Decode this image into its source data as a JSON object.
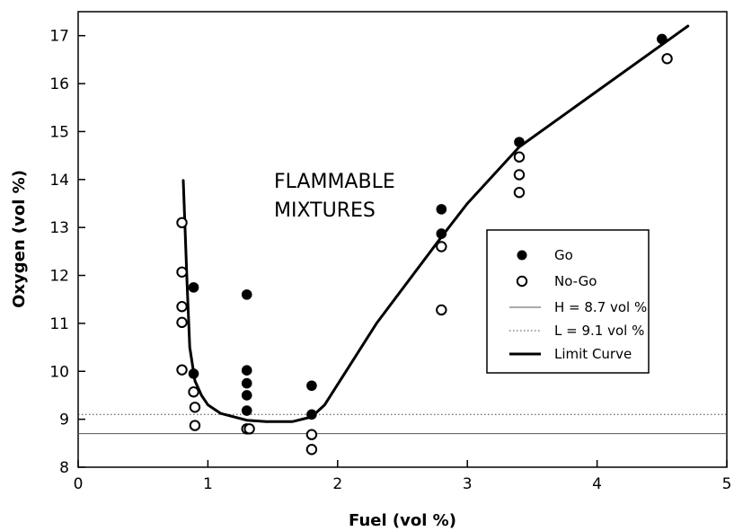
{
  "chart_data": {
    "type": "scatter",
    "xlabel": "Fuel (vol %)",
    "ylabel": "Oxygen (vol %)",
    "xlim": [
      0,
      5
    ],
    "ylim": [
      8,
      17.5
    ],
    "xticks": [
      "0",
      "1",
      "2",
      "3",
      "4",
      "5"
    ],
    "yticks": [
      "8",
      "9",
      "10",
      "11",
      "12",
      "13",
      "14",
      "15",
      "16",
      "17"
    ],
    "annotation": [
      "FLAMMABLE",
      "MIXTURES"
    ],
    "legend_position": "right",
    "series": [
      {
        "name": "Go",
        "marker": "filled-circle",
        "x": [
          0.89,
          0.89,
          1.3,
          1.3,
          1.3,
          1.3,
          1.3,
          1.31,
          1.8,
          1.8,
          2.8,
          2.8,
          3.4,
          4.5
        ],
        "y": [
          11.75,
          9.95,
          11.6,
          10.02,
          9.75,
          9.5,
          9.18,
          8.8,
          9.7,
          9.1,
          13.38,
          12.87,
          14.78,
          16.93
        ]
      },
      {
        "name": "No-Go",
        "marker": "open-circle",
        "x": [
          0.8,
          0.8,
          0.8,
          0.8,
          0.8,
          0.89,
          0.9,
          0.9,
          1.3,
          1.32,
          1.8,
          1.8,
          2.8,
          2.8,
          3.4,
          3.4,
          3.4,
          4.54
        ],
        "y": [
          13.1,
          12.07,
          11.35,
          11.02,
          10.03,
          9.57,
          9.25,
          8.87,
          8.8,
          8.8,
          8.68,
          8.37,
          12.6,
          11.28,
          14.47,
          14.1,
          13.73,
          16.52
        ]
      },
      {
        "name": "H = 8.7 vol %",
        "type": "hline",
        "style": "solid-thin",
        "y": 8.7
      },
      {
        "name": "L = 9.1 vol %",
        "type": "hline",
        "style": "dotted",
        "y": 9.1
      },
      {
        "name": "Limit Curve",
        "type": "line",
        "style": "solid-thick",
        "x": [
          0.81,
          0.84,
          0.86,
          0.9,
          0.95,
          1.0,
          1.1,
          1.3,
          1.45,
          1.65,
          1.8,
          1.9,
          2.3,
          2.8,
          3.0,
          3.4,
          4.7
        ],
        "y": [
          13.98,
          11.8,
          10.5,
          9.8,
          9.5,
          9.3,
          9.12,
          8.98,
          8.95,
          8.95,
          9.05,
          9.3,
          11.0,
          12.8,
          13.5,
          14.68,
          17.2
        ]
      }
    ]
  }
}
